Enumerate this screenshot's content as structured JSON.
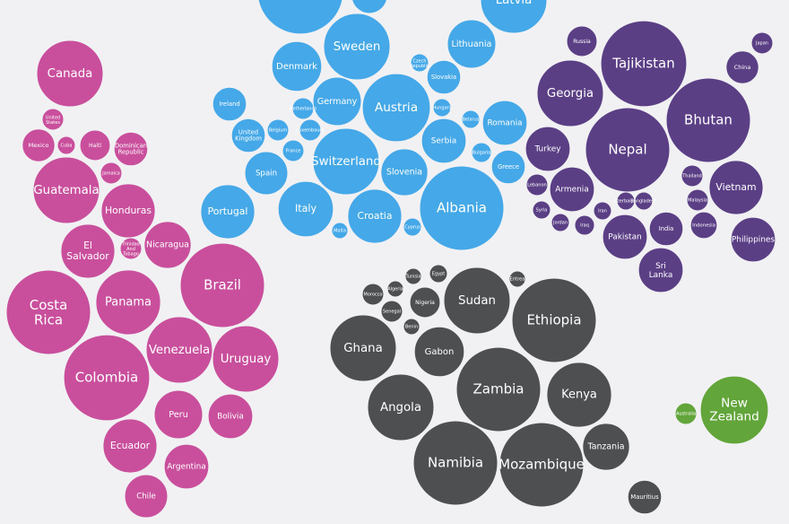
{
  "chart_data": {
    "type": "bubble",
    "series": [
      {
        "color": "#c94f9c",
        "categories": [
          "Canada",
          "United States",
          "Mexico",
          "Cuba",
          "Haiti",
          "Dominican Republic",
          "Jamaica",
          "Guatemala",
          "Honduras",
          "El Salvador",
          "Trinidad And Tobago",
          "Nicaragua",
          "Costa Rica",
          "Panama",
          "Brazil",
          "Colombia",
          "Venezuela",
          "Uruguay",
          "Peru",
          "Bolivia",
          "Ecuador",
          "Argentina",
          "Chile"
        ],
        "values": [
          62,
          6.5,
          15,
          4.5,
          13,
          16,
          6.5,
          62,
          41,
          41,
          6.5,
          31,
          100,
          59,
          100,
          104,
          62,
          62,
          33,
          28,
          41,
          28,
          26
        ]
      },
      {
        "color": "#45a8e8",
        "categories": [
          null,
          null,
          "Latvia",
          "Sweden",
          "Lithuania",
          "Czech Republic",
          "Denmark",
          "Slovakia",
          "Ireland",
          "Germany",
          "Austria",
          "Hungary",
          "Belarus",
          "Romania",
          "Netherlands",
          "Belgium",
          "Luxembourg",
          "United Kingdom",
          "France",
          "Switzerland",
          "Serbia",
          "Bulgaria",
          "Greece",
          "Spain",
          "Slovenia",
          "Albania",
          "Portugal",
          "Italy",
          "Croatia",
          "Malta",
          "Cyprus"
        ],
        "values": [
          104,
          18,
          62,
          62,
          33,
          4.5,
          35,
          16,
          16,
          33,
          65,
          4.5,
          4.5,
          28,
          6.5,
          6.5,
          6.5,
          16,
          6.5,
          62,
          28,
          5.5,
          16,
          26,
          31,
          100,
          41,
          43,
          41,
          3.7,
          4.5
        ]
      },
      {
        "color": "#5b3f85",
        "categories": [
          "Russia",
          "Tajikistan",
          "Japan",
          "China",
          "Georgia",
          "Bhutan",
          "Turkey",
          "Nepal",
          "Thailand",
          "Vietnam",
          "Lebanon",
          "Armenia",
          "Malaysia",
          "Syria",
          "Iran",
          "Azerbaijan",
          "Bangladesh",
          "Jordan",
          "Iraq",
          "India",
          "Indonesia",
          "Pakistan",
          "Philippines",
          "Sri Lanka"
        ],
        "values": [
          13,
          104,
          6.5,
          15,
          62,
          100,
          28,
          100,
          6.5,
          41,
          6.5,
          28,
          6.5,
          4.5,
          4.5,
          4.5,
          4.5,
          4.5,
          5.5,
          16,
          10,
          28,
          28,
          28
        ]
      },
      {
        "color": "#4d4f51",
        "categories": [
          "Egypt",
          "Tunisia",
          "Eritrea",
          "Algeria",
          "Morocco",
          "Nigeria",
          "Sudan",
          "Senegal",
          "Ethiopia",
          "Benin",
          "Ghana",
          "Gabon",
          "Zambia",
          "Kenya",
          "Angola",
          "Tanzania",
          "Namibia",
          "Mozambique",
          "Mauritius"
        ],
        "values": [
          4.5,
          3.7,
          3.7,
          3.7,
          6.5,
          13,
          62,
          6.5,
          100,
          3.7,
          62,
          35,
          100,
          59,
          62,
          31,
          100,
          100,
          16
        ]
      },
      {
        "color": "#62a53a",
        "categories": [
          "Australia",
          "New Zealand"
        ],
        "values": [
          6.5,
          65
        ]
      }
    ]
  }
}
